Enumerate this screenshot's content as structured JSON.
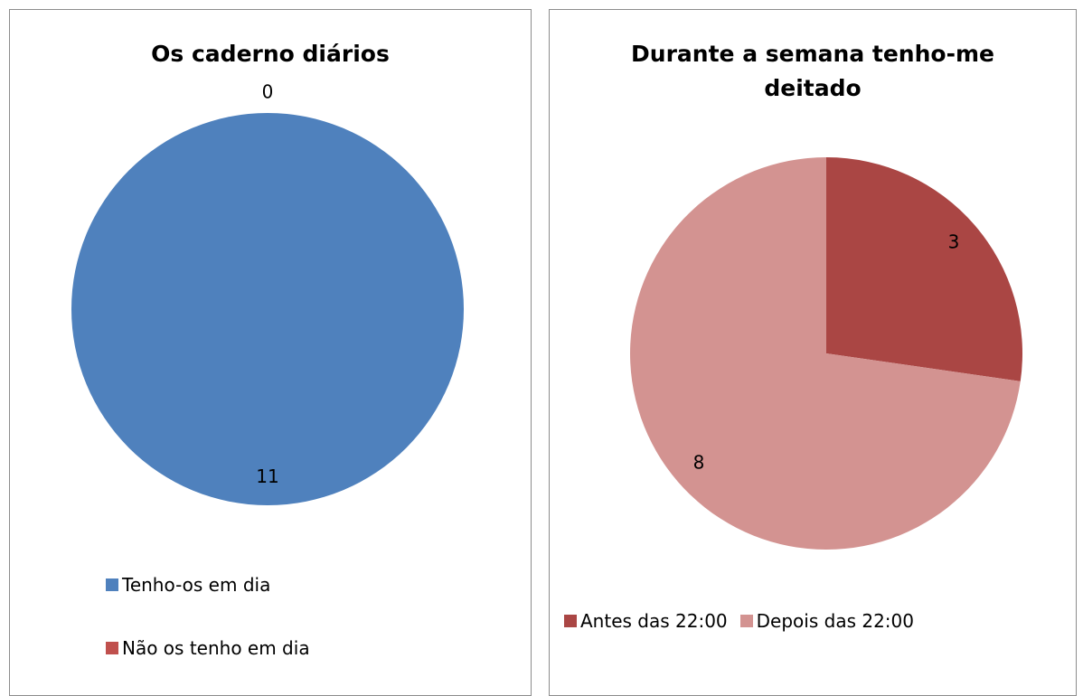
{
  "chart_data": [
    {
      "type": "pie",
      "title": "Os caderno diários",
      "categories": [
        "Tenho-os em dia",
        "Não os tenho em dia"
      ],
      "values": [
        11,
        0
      ],
      "colors": [
        "#4f81bd",
        "#c0504d"
      ],
      "legend": "bottom"
    },
    {
      "type": "pie",
      "title": "Durante a semana tenho-me deitado",
      "categories": [
        "Antes das 22:00",
        "Depois das 22:00"
      ],
      "values": [
        3,
        8
      ],
      "colors": [
        "#aa4644",
        "#d39391"
      ],
      "legend": "bottom"
    }
  ]
}
